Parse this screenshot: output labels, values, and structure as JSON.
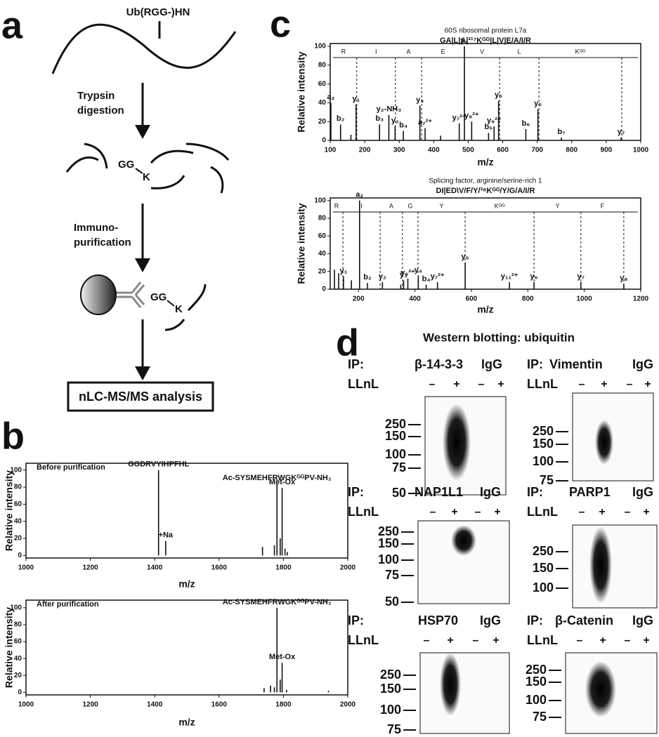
{
  "panel_labels": [
    "a",
    "b",
    "c",
    "d"
  ],
  "workflow": {
    "protein_label": "Ub(RGG-)HN",
    "step1": [
      "Trypsin",
      "digestion"
    ],
    "step2": [
      "Immuno-",
      "purification"
    ],
    "gg": "GG",
    "k": "K",
    "analysis": "nLC-MS/MS analysis"
  },
  "chart_data": [
    {
      "type": "stem",
      "panel_title": "Before purification",
      "ylabel": "Relative intensity",
      "xlabel": "m/z",
      "x": [
        1412,
        1434,
        1735,
        1772,
        1780,
        1790,
        1796,
        1805,
        1812
      ],
      "values": [
        100,
        17,
        10,
        12,
        84,
        20,
        79,
        8,
        4
      ],
      "peak_labels": [
        "GGDRVYIHPFHL",
        "+Na",
        null,
        null,
        "Ac-SYSMEHFRWGKᴳᴳPV-NH₂",
        null,
        "Met-Ox",
        null,
        null
      ],
      "xlim": [
        1000,
        2000
      ],
      "ylim": [
        -3,
        108
      ],
      "xticks": [
        1000,
        1200,
        1400,
        1600,
        1800,
        2000
      ],
      "yticks": [
        0,
        20,
        40,
        60,
        80,
        100
      ],
      "color": "#111111"
    },
    {
      "type": "stem",
      "panel_title": "After purification",
      "ylabel": "Relative intensity",
      "xlabel": "m/z",
      "x": [
        1740,
        1760,
        1772,
        1780,
        1790,
        1796,
        1810,
        1940
      ],
      "values": [
        5,
        8,
        6,
        100,
        15,
        35,
        3,
        2
      ],
      "peak_labels": [
        null,
        null,
        null,
        "Ac-SYSMEHFRWGKᴳᴳPV-NH₂",
        null,
        "Met-Ox",
        null,
        null
      ],
      "xlim": [
        1000,
        2000
      ],
      "ylim": [
        -3,
        109
      ],
      "xticks": [
        1000,
        1200,
        1400,
        1600,
        1800,
        2000
      ],
      "yticks": [
        0,
        20,
        40,
        60,
        80,
        100
      ],
      "color": "#111111"
    },
    {
      "type": "stem",
      "title": [
        "60S ribosomal protein L7a",
        "GA|L|A|²¹⁷Kᴳᴳ|L|V|E/A/I/R"
      ],
      "ylabel": "Relative intensity",
      "xlabel": "m/z",
      "x": [
        102,
        130,
        160,
        175,
        243,
        270,
        288,
        312,
        360,
        375,
        420,
        474,
        489,
        510,
        559,
        575,
        588,
        667,
        702,
        770,
        943
      ],
      "values": [
        40,
        17,
        6,
        38,
        17,
        27,
        15,
        10,
        37,
        13,
        5,
        18,
        100,
        20,
        8,
        15,
        42,
        12,
        33,
        3,
        3
      ],
      "peak_labels": [
        "a₂",
        "b₂",
        null,
        "y₁",
        "b₃",
        "y₂-NH₃",
        "y₂",
        "b₄",
        "y₃",
        "a₇²⁺",
        null,
        "y₇²⁺",
        "y₄",
        "y₈²⁺",
        "b₅",
        "y₉²⁺",
        "y₅",
        "b₆",
        "y₆",
        "b₇",
        "y₇"
      ],
      "ladder": {
        "x": [
          100,
          177,
          289,
          365,
          489,
          591,
          705,
          945
        ],
        "residues": [
          "R",
          "I",
          "A",
          "E",
          "V",
          "L",
          "Kᴳᴳ"
        ]
      },
      "xlim": [
        100,
        1000
      ],
      "ylim": [
        0,
        103
      ],
      "xticks": [
        100,
        200,
        300,
        400,
        500,
        600,
        700,
        800,
        900,
        1000
      ],
      "yticks": [
        0,
        20,
        40,
        60,
        80,
        100
      ],
      "color": "#111111"
    },
    {
      "type": "stem",
      "title": [
        "Splicing factor, arginine/serine-rich 1",
        "DI|ED\\V/F/Y/³⁸Kᴳᴳ/Y/G/A/I/R"
      ],
      "ylabel": "Relative intensity",
      "xlabel": "m/z",
      "x": [
        115,
        130,
        147,
        175,
        204,
        232,
        285,
        350,
        360,
        375,
        412,
        440,
        480,
        578,
        735,
        822,
        988,
        1140
      ],
      "values": [
        22,
        18,
        14,
        10,
        100,
        7,
        8,
        5,
        10,
        12,
        15,
        5,
        8,
        30,
        8,
        8,
        8,
        6
      ],
      "peak_labels": [
        null,
        null,
        "y₁",
        null,
        "a₂",
        "b₂",
        "y₂",
        null,
        "y₃",
        "y₆²⁺",
        "y₄",
        "b₄",
        "y₇²⁺",
        "y₅",
        "y₁₁²⁺",
        "y₆",
        "y₇",
        "y₈"
      ],
      "ladder": {
        "x": [
          100,
          145,
          277,
          356,
          411,
          578,
          822,
          988,
          1140
        ],
        "residues": [
          "R",
          "I",
          "A",
          "G",
          "Y",
          "Kᴳᴳ",
          "Y",
          "F"
        ]
      },
      "xlim": [
        100,
        1200
      ],
      "ylim": [
        0,
        103
      ],
      "xticks": [
        200,
        400,
        600,
        800,
        1000,
        1200
      ],
      "yticks": [
        0,
        20,
        40,
        60,
        80,
        100
      ],
      "color": "#111111"
    }
  ],
  "western": {
    "title": "Western blotting: ubiquitin",
    "ip_prefix": "IP:",
    "treatment": "LLnL",
    "control": "IgG",
    "lanes": [
      "–",
      "+",
      "–",
      "+"
    ],
    "blots": [
      {
        "target": "β-14-3-3",
        "markers": [
          250,
          150,
          100,
          75,
          50
        ]
      },
      {
        "target": "Vimentin",
        "markers": [
          250,
          150,
          100,
          75
        ]
      },
      {
        "target": "NAP1L1",
        "markers": [
          250,
          150,
          100,
          75,
          50
        ]
      },
      {
        "target": "PARP1",
        "markers": [
          250,
          150,
          100
        ]
      },
      {
        "target": "HSP70",
        "markers": [
          250,
          150,
          100,
          75
        ]
      },
      {
        "target": "β-Catenin",
        "markers": [
          250,
          150,
          100,
          75
        ]
      }
    ]
  }
}
